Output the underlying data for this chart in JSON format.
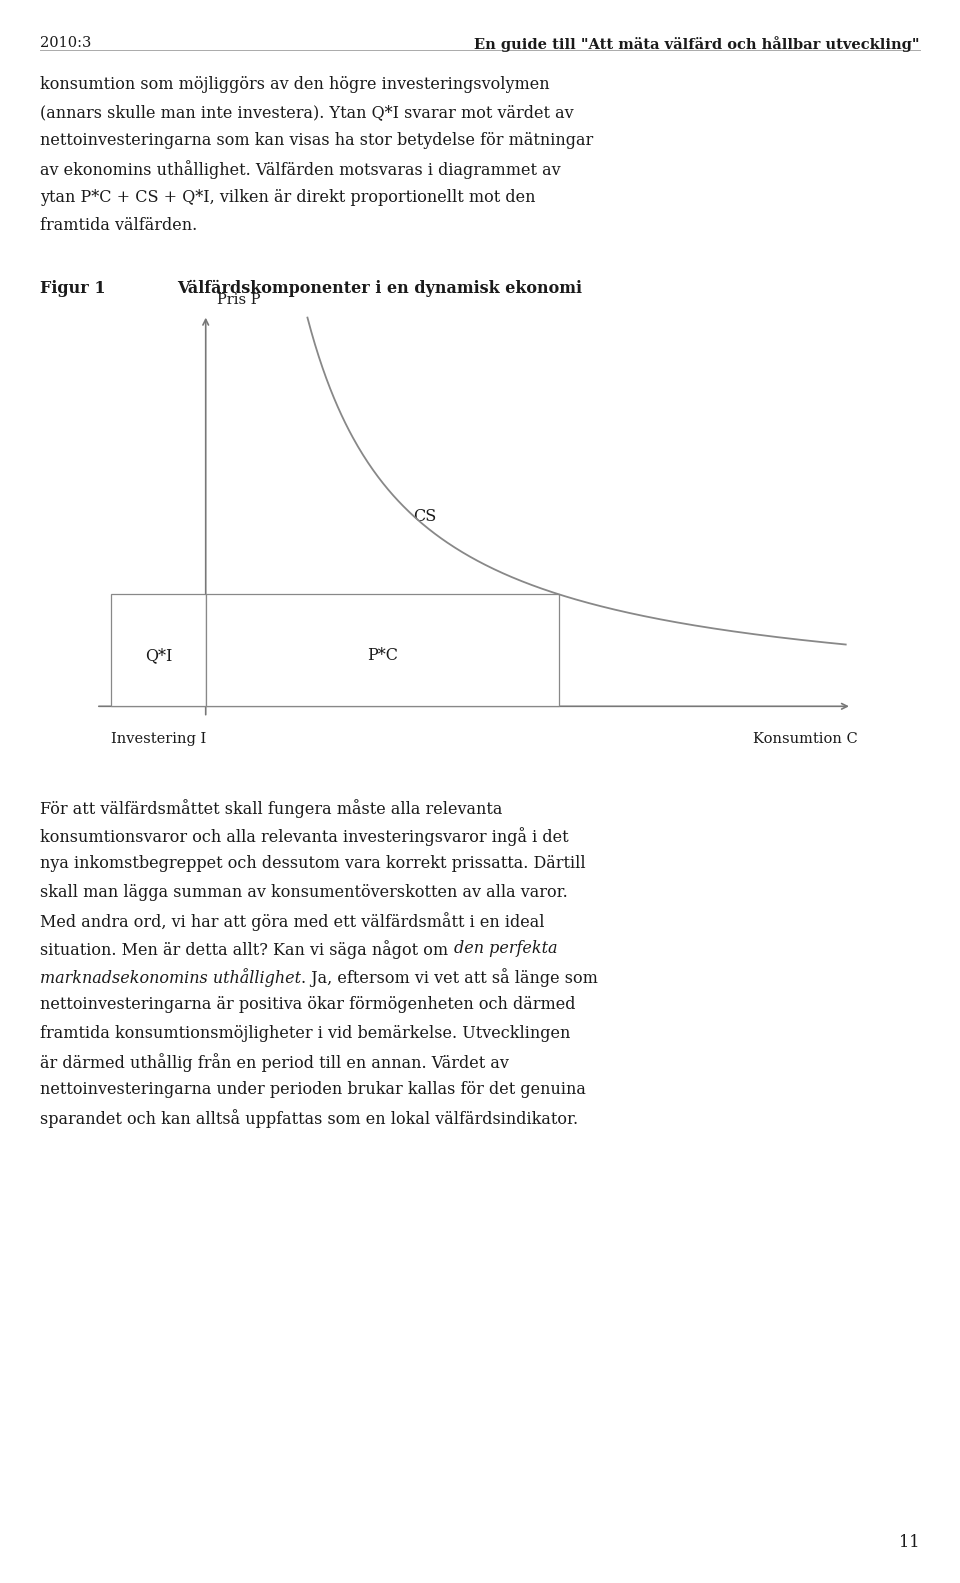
{
  "header_left": "2010:3",
  "header_right": "En guide till \"Att mäta välfärd och hållbar utveckling\"",
  "p1_lines": [
    "konsumtion som möjliggörs av den högre investeringsvolymen",
    "(annars skulle man inte investera). Ytan Q*I svarar mot värdet av",
    "nettoinvesteringarna som kan visas ha stor betydelse för mätningar",
    "av ekonomins uthållighet. Välfärden motsvaras i diagrammet av",
    "ytan P*C + CS + Q*I, vilken är direkt proportionellt mot den",
    "framtida välfärden."
  ],
  "fig_label": "Figur 1",
  "fig_title": "Välfärdskomponenter i en dynamisk ekonomi",
  "y_axis_label": "Pris P",
  "x_axis_label_left": "Investering I",
  "x_axis_label_right": "Konsumtion C",
  "cs_label": "CS",
  "qi_label": "Q*I",
  "pc_label": "P*C",
  "p2_segments": [
    {
      "text": "För att välfärdsmåttet skall fungera måste alla relevanta",
      "italic": false
    },
    {
      "text": "konsumtionsvaror och alla relevanta investeringsvaror ingå i det",
      "italic": false
    },
    {
      "text": "nya inkomstbegreppet och dessutom vara korrekt prissatta. Därtill",
      "italic": false
    },
    {
      "text": "skall man lägga summan av konsumentöverskotten av alla varor.",
      "italic": false
    },
    {
      "text": "Med andra ord, vi har att göra med ett välfärdsmått i en ideal",
      "italic": false
    },
    {
      "text": "situation. Men är detta allt? Kan vi säga något om ",
      "italic": false,
      "continuation": "den perfekta"
    },
    {
      "text": "marknadsekonomins uthållighet",
      "italic": true,
      "continuation_normal": ". Ja, eftersom vi vet att så länge som"
    },
    {
      "text": "nettoinvesteringarna är positiva ökar förmögenheten och därmed",
      "italic": false
    },
    {
      "text": "framtida konsumtionsmöjligheter i vid bemärkelse. Utvecklingen",
      "italic": false
    },
    {
      "text": "är därmed uthållig från en period till en annan. Värdet av",
      "italic": false
    },
    {
      "text": "nettoinvesteringarna under perioden brukar kallas för det genuina",
      "italic": false
    },
    {
      "text": "sparandet och kan alltså uppfattas som en lokal välfärdsindikator.",
      "italic": false
    }
  ],
  "page_number": "11",
  "bg_color": "#ffffff",
  "text_color": "#1a1a1a",
  "axis_color": "#777777",
  "curve_color": "#888888",
  "rect_edge_color": "#888888"
}
